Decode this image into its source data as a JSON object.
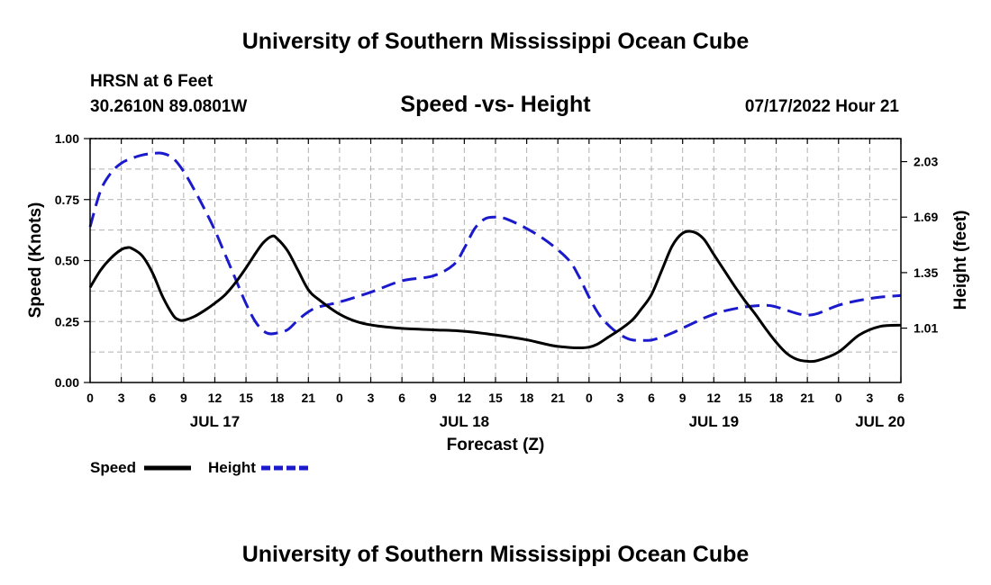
{
  "header": {
    "title": "University of Southern Mississippi Ocean Cube",
    "station": "HRSN at 6 Feet",
    "coordinates": "30.2610N  89.0801W",
    "chart_title": "Speed -vs- Height",
    "datetime": "07/17/2022 Hour 21"
  },
  "footer": {
    "title": "University of Southern Mississippi Ocean Cube"
  },
  "colors": {
    "speed": "#000000",
    "height": "#1a1acc",
    "grid": "#b0b0b0"
  },
  "chart_data": {
    "type": "line",
    "title": "Speed -vs- Height",
    "xlabel": "Forecast (Z)",
    "ylabel": "Speed (Knots)",
    "y2label": "Height (feet)",
    "x_unit": "hours since 2022-07-17 00Z",
    "xlim": [
      0,
      78
    ],
    "ylim": [
      0,
      1.0
    ],
    "y2lim": [
      0.677,
      2.171
    ],
    "grid": true,
    "x_ticks": [
      0,
      3,
      6,
      9,
      12,
      15,
      18,
      21,
      24,
      27,
      30,
      33,
      36,
      39,
      42,
      45,
      48,
      51,
      54,
      57,
      60,
      63,
      66,
      69,
      72,
      75,
      78
    ],
    "x_tick_labels": [
      "0",
      "3",
      "6",
      "9",
      "12",
      "15",
      "18",
      "21",
      "0",
      "3",
      "6",
      "9",
      "12",
      "15",
      "18",
      "21",
      "0",
      "3",
      "6",
      "9",
      "12",
      "15",
      "18",
      "21",
      "0",
      "3",
      "6"
    ],
    "y_ticks": [
      0,
      0.25,
      0.5,
      0.75,
      1.0
    ],
    "y_tick_labels": [
      "0.00",
      "0.25",
      "0.50",
      "0.75",
      "1.00"
    ],
    "y2_ticks": [
      1.01,
      1.35,
      1.69,
      2.03
    ],
    "y2_tick_labels": [
      "1.01",
      "1.35",
      "1.69",
      "2.03"
    ],
    "date_labels": [
      {
        "x": 12,
        "label": "JUL 17"
      },
      {
        "x": 36,
        "label": "JUL 18"
      },
      {
        "x": 60,
        "label": "JUL 19"
      },
      {
        "x": 76,
        "label": "JUL 20"
      }
    ],
    "legend_position": "bottom-left",
    "series": [
      {
        "name": "Speed",
        "axis": "left",
        "style": "solid",
        "x": [
          0,
          1,
          2,
          3,
          3.6,
          4,
          5,
          6,
          7,
          8,
          8.5,
          9,
          10,
          11,
          12,
          13,
          14,
          15,
          16,
          16.7,
          17.5,
          18,
          19,
          20,
          21,
          22,
          24,
          26,
          28,
          30,
          33,
          36,
          39,
          42,
          45,
          48,
          50,
          52,
          53,
          54,
          55,
          56,
          57,
          58,
          59,
          60,
          61,
          62,
          63,
          64,
          65,
          66,
          67,
          68,
          69,
          70,
          72,
          74,
          76,
          78
        ],
        "values": [
          0.39,
          0.46,
          0.51,
          0.545,
          0.553,
          0.55,
          0.52,
          0.45,
          0.35,
          0.275,
          0.258,
          0.255,
          0.27,
          0.295,
          0.325,
          0.36,
          0.41,
          0.47,
          0.535,
          0.575,
          0.6,
          0.59,
          0.54,
          0.46,
          0.38,
          0.34,
          0.28,
          0.245,
          0.23,
          0.222,
          0.216,
          0.21,
          0.195,
          0.175,
          0.148,
          0.145,
          0.19,
          0.25,
          0.3,
          0.36,
          0.46,
          0.56,
          0.612,
          0.618,
          0.59,
          0.525,
          0.46,
          0.395,
          0.335,
          0.28,
          0.22,
          0.165,
          0.12,
          0.095,
          0.087,
          0.09,
          0.125,
          0.195,
          0.23,
          0.235
        ]
      },
      {
        "name": "Height",
        "axis": "right",
        "style": "dashed",
        "x": [
          0,
          1,
          2,
          3,
          4,
          5,
          6,
          7,
          8,
          9,
          10,
          11,
          12,
          13,
          14,
          15,
          16,
          17,
          18,
          19,
          20,
          21,
          22,
          24,
          27,
          30,
          33,
          35,
          36,
          37,
          38,
          39,
          40,
          42,
          44,
          46,
          47,
          48,
          49,
          50,
          51,
          52,
          53,
          54,
          55,
          56,
          57,
          58,
          59,
          60,
          61,
          63,
          65,
          66,
          68,
          69,
          70,
          72,
          74,
          76,
          78
        ],
        "values": [
          1.63,
          1.85,
          1.96,
          2.02,
          2.05,
          2.07,
          2.08,
          2.08,
          2.05,
          1.97,
          1.86,
          1.74,
          1.61,
          1.46,
          1.31,
          1.16,
          1.04,
          0.98,
          0.98,
          1.0,
          1.06,
          1.11,
          1.14,
          1.17,
          1.23,
          1.3,
          1.33,
          1.4,
          1.5,
          1.62,
          1.68,
          1.69,
          1.68,
          1.62,
          1.54,
          1.43,
          1.33,
          1.2,
          1.09,
          1.02,
          0.97,
          0.94,
          0.935,
          0.937,
          0.955,
          0.98,
          1.01,
          1.04,
          1.07,
          1.095,
          1.115,
          1.14,
          1.15,
          1.14,
          1.1,
          1.09,
          1.1,
          1.15,
          1.18,
          1.2,
          1.21
        ]
      }
    ]
  }
}
